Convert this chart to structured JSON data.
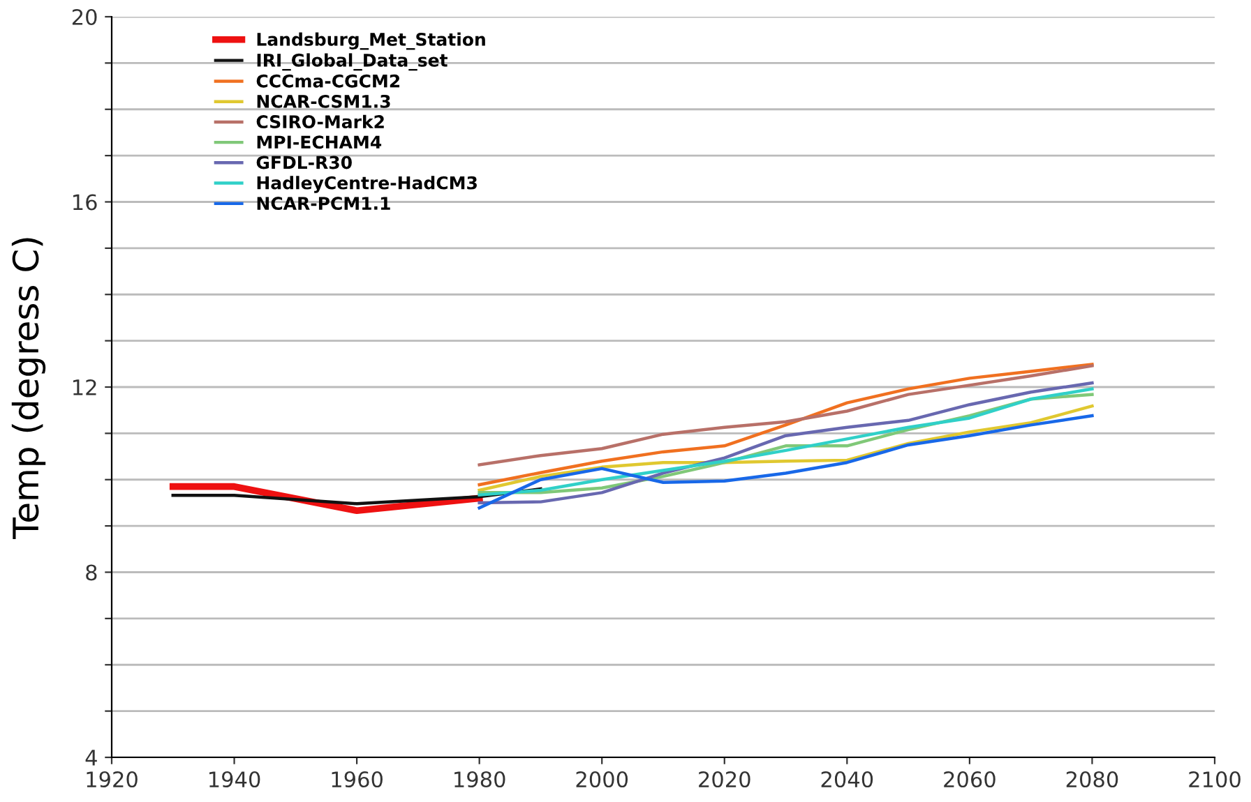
{
  "chart_data": {
    "type": "line",
    "ylabel": "Temp (degress C)",
    "xlim": [
      1920,
      2100
    ],
    "xticks": [
      1920,
      1940,
      1960,
      1980,
      2000,
      2020,
      2040,
      2060,
      2080,
      2100
    ],
    "ylim": [
      4,
      20
    ],
    "yticks": [
      4,
      {
        "value": 5,
        "label": null
      },
      {
        "value": 6,
        "label": null
      },
      {
        "value": 7,
        "label": null
      },
      8,
      {
        "value": 9,
        "label": null
      },
      {
        "value": 10,
        "label": null
      },
      {
        "value": 11,
        "label": null
      },
      12,
      {
        "value": 13,
        "label": null
      },
      {
        "value": 14,
        "label": null
      },
      {
        "value": 15,
        "label": null
      },
      16,
      {
        "value": 17,
        "label": null
      },
      {
        "value": 18,
        "label": null
      },
      {
        "value": 19,
        "label": null
      },
      20
    ],
    "grid": "y",
    "legend": "top left",
    "series": [
      {
        "name": "Landsburg_Met_Station",
        "color": "#ee1111",
        "x": [
          1930,
          1940,
          1960,
          1980
        ],
        "values": [
          9.85,
          9.85,
          9.33,
          9.6
        ]
      },
      {
        "name": "IRI_Global_Data_set",
        "color": "#111111",
        "x": [
          1930,
          1940,
          1960,
          1980,
          1990
        ],
        "values": [
          9.66,
          9.66,
          9.48,
          9.63,
          9.8
        ]
      },
      {
        "name": "CCCma-CGCM2",
        "color": "#f07020",
        "x": [
          1980,
          1990,
          2000,
          2010,
          2020,
          2030,
          2040,
          2050,
          2060,
          2070,
          2080
        ],
        "values": [
          9.89,
          10.15,
          10.4,
          10.6,
          10.73,
          11.18,
          11.66,
          11.96,
          12.19,
          12.34,
          12.49
        ]
      },
      {
        "name": "NCAR-CSM1.3",
        "color": "#e0c830",
        "x": [
          1980,
          1990,
          2000,
          2010,
          2020,
          2030,
          2040,
          2050,
          2060,
          2070,
          2080
        ],
        "values": [
          9.77,
          10.07,
          10.27,
          10.37,
          10.37,
          10.4,
          10.42,
          10.78,
          11.03,
          11.23,
          11.59
        ]
      },
      {
        "name": "CSIRO-Mark2",
        "color": "#b87068",
        "x": [
          1980,
          1990,
          2000,
          2010,
          2020,
          2030,
          2040,
          2050,
          2060,
          2070,
          2080
        ],
        "values": [
          10.32,
          10.52,
          10.67,
          10.98,
          11.13,
          11.25,
          11.48,
          11.84,
          12.04,
          12.24,
          12.46
        ]
      },
      {
        "name": "MPI-ECHAM4",
        "color": "#80c878",
        "x": [
          1980,
          1990,
          2000,
          2010,
          2020,
          2030,
          2040,
          2050,
          2060,
          2070,
          2080
        ],
        "values": [
          9.72,
          9.72,
          9.82,
          10.07,
          10.37,
          10.73,
          10.73,
          11.08,
          11.38,
          11.74,
          11.84
        ]
      },
      {
        "name": "GFDL-R30",
        "color": "#6868b0",
        "x": [
          1980,
          1990,
          2000,
          2010,
          2020,
          2030,
          2040,
          2050,
          2060,
          2070,
          2080
        ],
        "values": [
          9.5,
          9.52,
          9.72,
          10.14,
          10.47,
          10.95,
          11.13,
          11.28,
          11.62,
          11.89,
          12.09
        ]
      },
      {
        "name": "HadleyCentre-HadCM3",
        "color": "#30d0c8",
        "x": [
          1980,
          1990,
          2000,
          2010,
          2020,
          2030,
          2040,
          2050,
          2060,
          2070,
          2080
        ],
        "values": [
          9.67,
          9.77,
          10.0,
          10.2,
          10.4,
          10.63,
          10.88,
          11.13,
          11.33,
          11.74,
          11.96
        ]
      },
      {
        "name": "NCAR-PCM1.1",
        "color": "#1868e8",
        "x": [
          1980,
          1990,
          2000,
          2010,
          2020,
          2030,
          2040,
          2050,
          2060,
          2070,
          2080
        ],
        "values": [
          9.39,
          10.0,
          10.24,
          9.94,
          9.97,
          10.14,
          10.37,
          10.75,
          10.95,
          11.18,
          11.38
        ]
      }
    ]
  }
}
